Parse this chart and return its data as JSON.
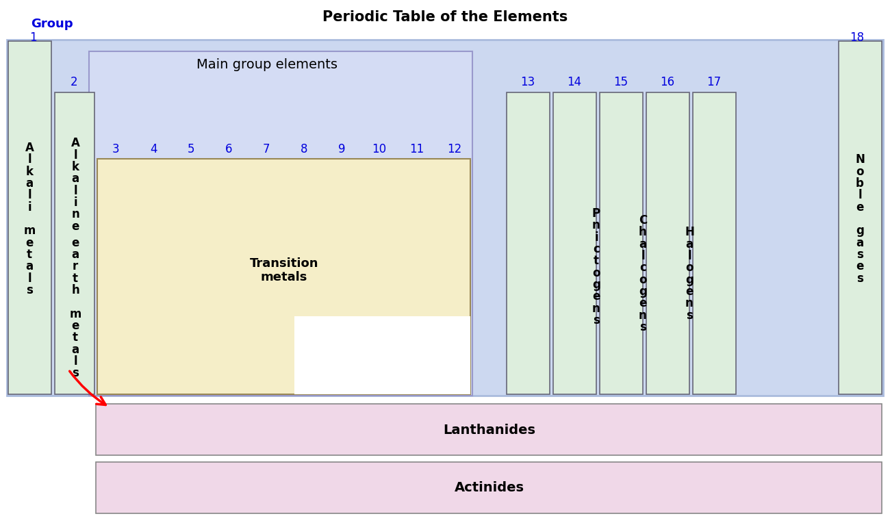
{
  "title": "Periodic Table of the Elements",
  "title_fontsize": 15,
  "title_fontweight": "bold",
  "colors": {
    "outer_blue": "#ccd8f0",
    "main_group_blue": "#d4dcf4",
    "light_green": "#ddeedd",
    "transition_yellow": "#f5eec8",
    "light_pink": "#f0d8e8",
    "white": "#ffffff",
    "blue_text": "#0000dd",
    "black_text": "#000000",
    "border_dark": "#444466",
    "border_mid": "#888899"
  },
  "group_col_labels": [
    "1",
    "2",
    "3",
    "4",
    "5",
    "6",
    "7",
    "8",
    "9",
    "10",
    "11",
    "12",
    "13",
    "14",
    "15",
    "16",
    "17",
    "18"
  ],
  "group_col_label_3_12": [
    "3",
    "4",
    "5",
    "6",
    "7",
    "8",
    "9",
    "10",
    "11",
    "12"
  ],
  "group_col_label_13_17": [
    "13",
    "14",
    "15",
    "16",
    "17"
  ],
  "right_col_texts": {
    "15": "Pnictogens",
    "16": "Chalcogens",
    "17": "Halogens"
  },
  "main_group_label": "Main group elements",
  "transition_metals_label": "Transition\nmetals",
  "lanthanides_label": "Lanthanides",
  "actinides_label": "Actinides",
  "group_word": "Group",
  "col1_label": "Alkali metals",
  "col2_label_top": "Alkaline",
  "col2_label_bot": "earth metals",
  "col18_label": "Noble gases"
}
